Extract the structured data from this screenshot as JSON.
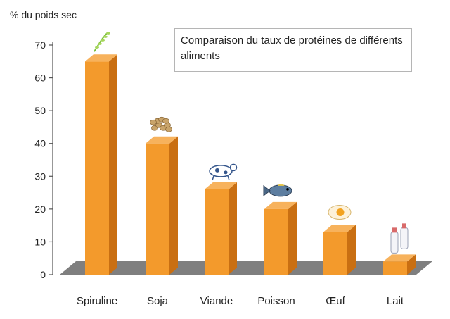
{
  "chart_data": {
    "type": "bar",
    "title": "Comparaison du taux de protéines de différents aliments",
    "ylabel": "% du poids sec",
    "xlabel": "",
    "categories": [
      "Spiruline",
      "Soja",
      "Viande",
      "Poisson",
      "Œuf",
      "Lait"
    ],
    "values": [
      65,
      40,
      26,
      20,
      13,
      4
    ],
    "ylim": [
      0,
      70
    ],
    "yticks": [
      0,
      10,
      20,
      30,
      40,
      50,
      60,
      70
    ],
    "grid": false,
    "legend": "none",
    "style": "3d",
    "colors": {
      "bar_front": "#f39a2c",
      "bar_side": "#c96f12",
      "bar_top": "#f7b25c",
      "floor": "#7f7f7f",
      "axis": "#555555"
    },
    "icons": [
      "spirulina-sprig-icon",
      "soybeans-icon",
      "cow-icon",
      "fish-icon",
      "fried-egg-icon",
      "milk-bottles-icon"
    ]
  }
}
